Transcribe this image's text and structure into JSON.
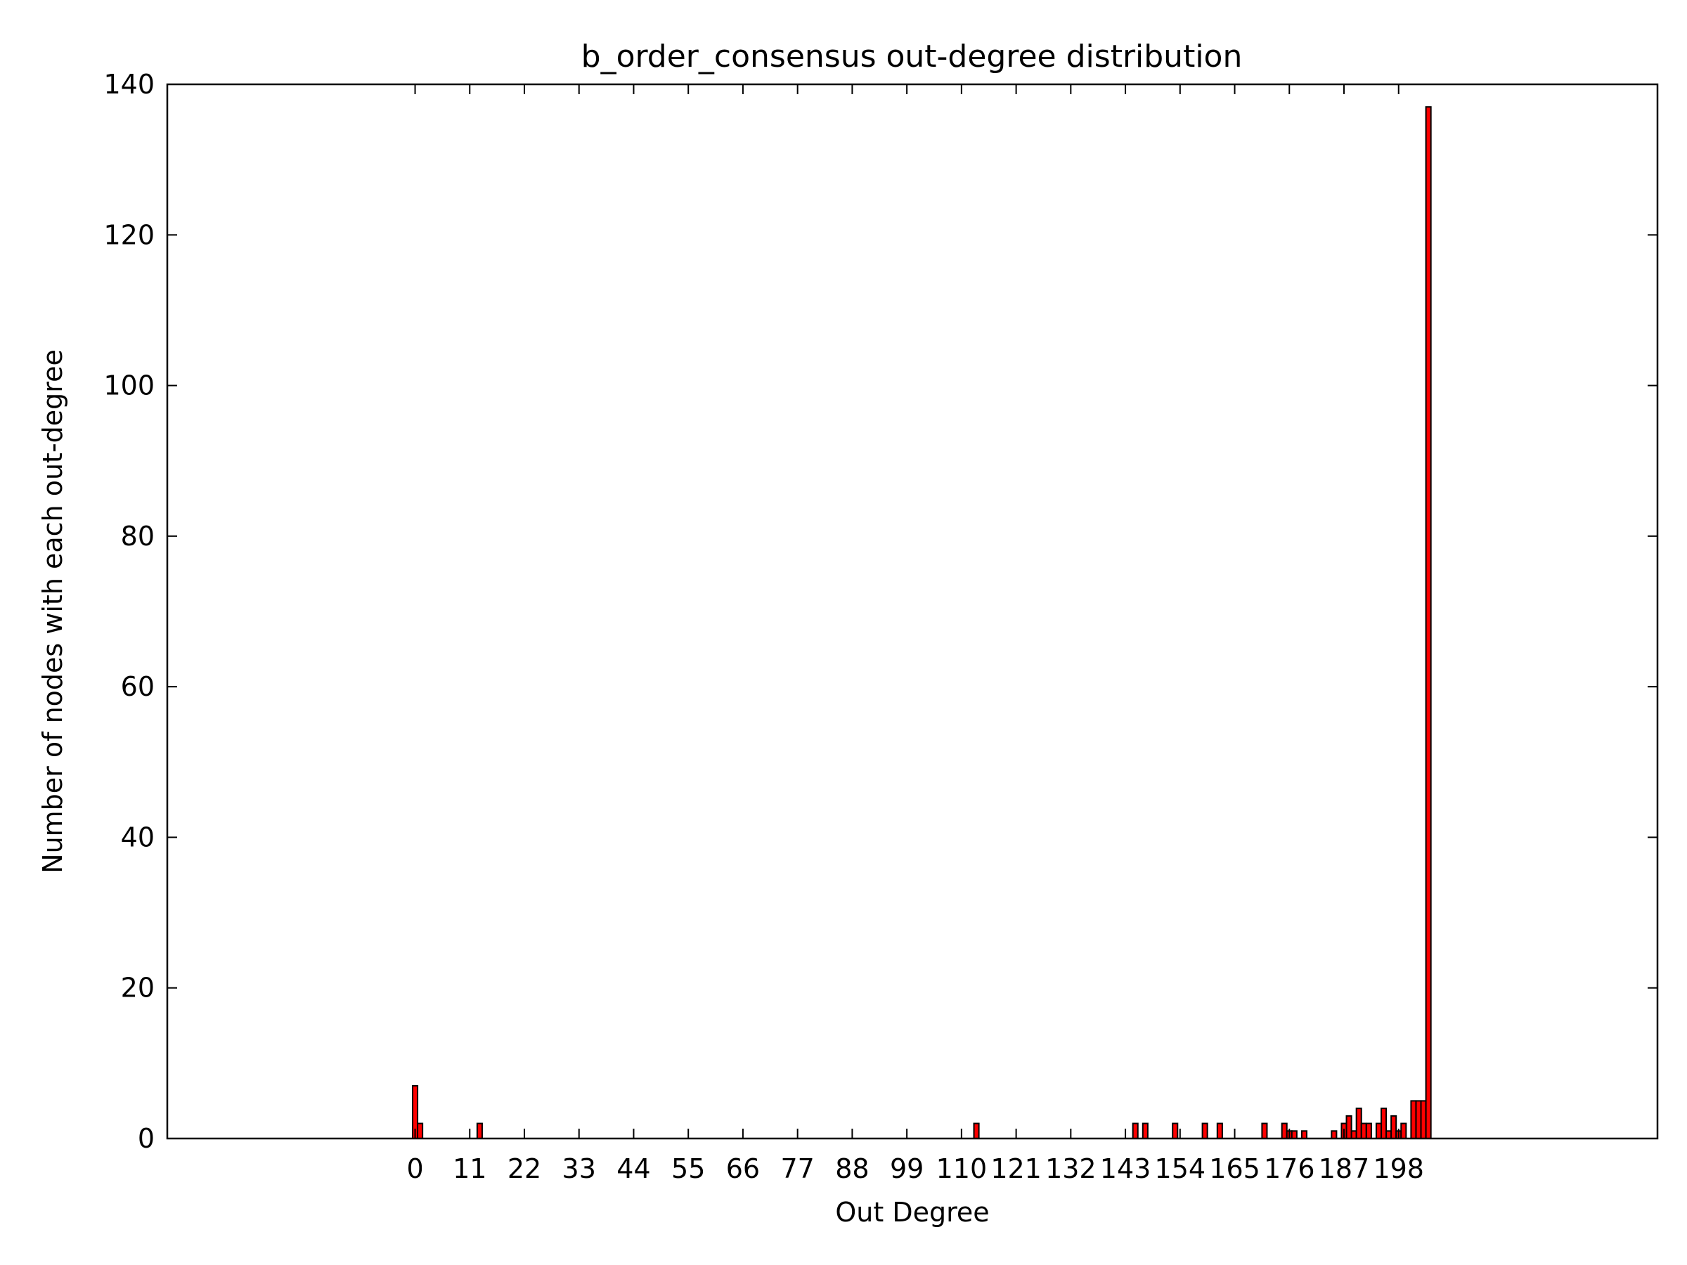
{
  "chart_data": {
    "type": "bar",
    "title": "b_order_consensus out-degree distribution",
    "xlabel": "Out Degree",
    "ylabel": "Number of nodes with each out-degree",
    "xlim": [
      -50,
      250
    ],
    "ylim": [
      0,
      140
    ],
    "x_ticks": [
      0,
      11,
      22,
      33,
      44,
      55,
      66,
      77,
      88,
      99,
      110,
      121,
      132,
      143,
      154,
      165,
      176,
      187,
      198
    ],
    "y_ticks": [
      0,
      20,
      40,
      60,
      80,
      100,
      120,
      140
    ],
    "bar_width": 1,
    "grid": false,
    "colors": {
      "bar_fill": "#ff0000",
      "bar_edge": "#000000",
      "axes": "#000000"
    },
    "series": [
      {
        "x": [
          0,
          1,
          13,
          113,
          145,
          147,
          153,
          159,
          162,
          171,
          175,
          176,
          177,
          179,
          185,
          187,
          188,
          189,
          190,
          191,
          192,
          194,
          195,
          196,
          197,
          198,
          199,
          201,
          202,
          203,
          204,
          205
        ],
        "values": [
          7,
          2,
          2,
          2,
          2,
          2,
          2,
          2,
          2,
          2,
          2,
          1,
          1,
          1,
          1,
          2,
          3,
          1,
          4,
          2,
          2,
          2,
          4,
          1,
          3,
          1,
          2,
          5,
          5,
          5,
          137,
          0
        ]
      }
    ]
  }
}
